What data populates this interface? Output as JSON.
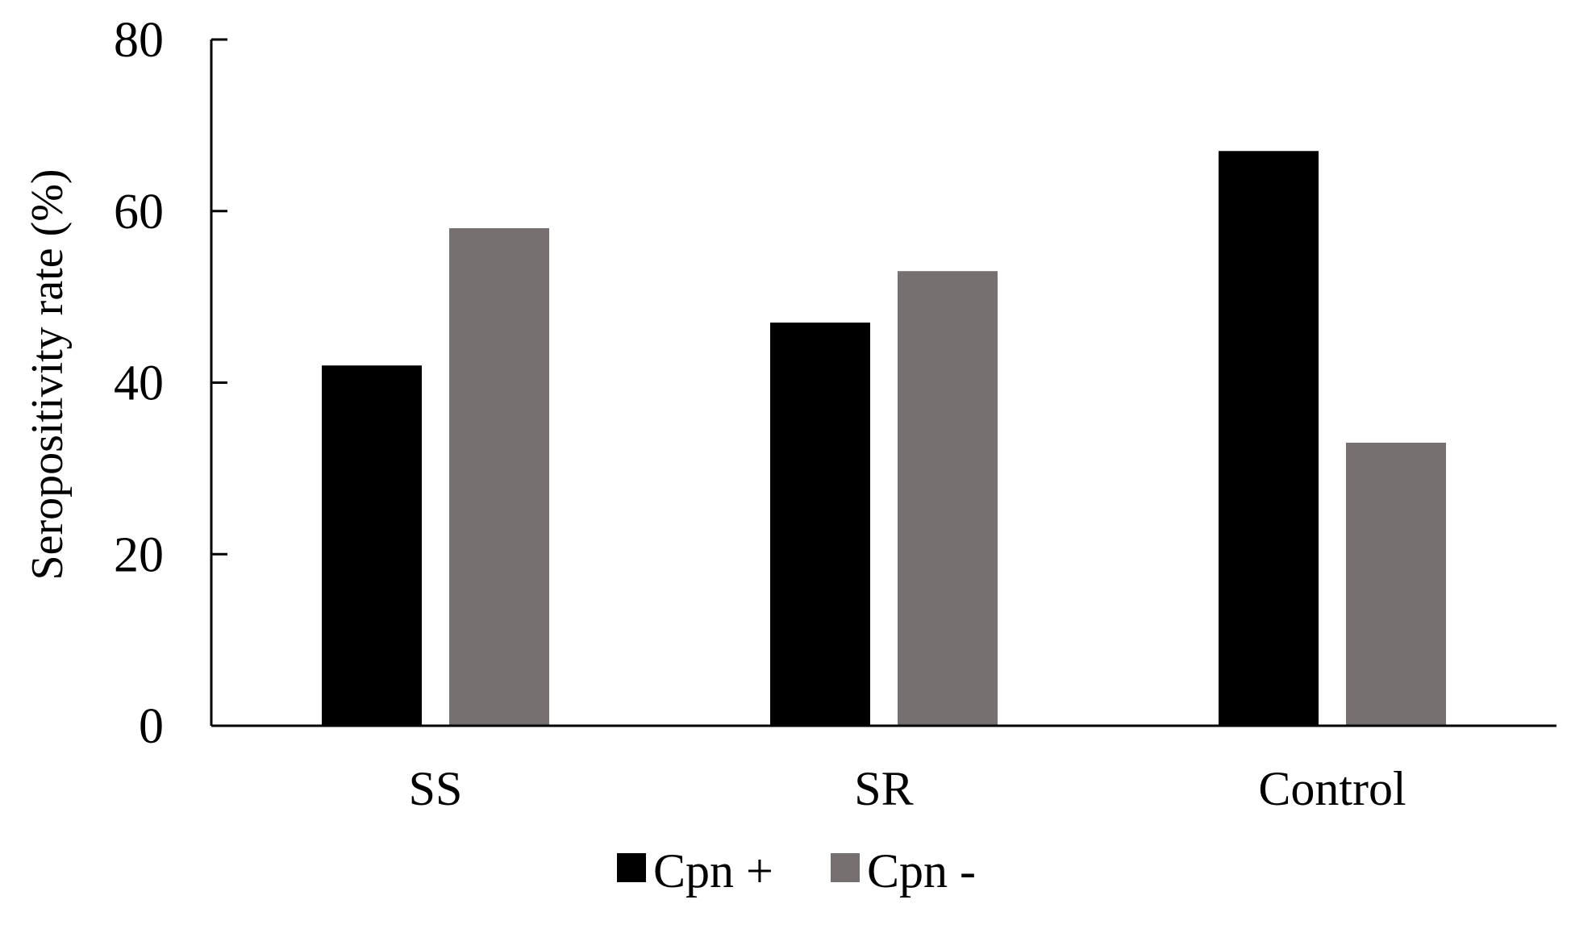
{
  "chart_data": {
    "type": "bar",
    "title": "",
    "xlabel": "",
    "ylabel": "Seropositivity rate (%)",
    "ylim": [
      0,
      80
    ],
    "yticks": [
      0,
      20,
      40,
      60,
      80
    ],
    "grid": false,
    "legend_position": "bottom",
    "categories": [
      "SS",
      "SR",
      "Control"
    ],
    "series": [
      {
        "name": "Cpn +",
        "color": "#000000",
        "values": [
          42,
          47,
          67
        ]
      },
      {
        "name": "Cpn -",
        "color": "#767170",
        "values": [
          58,
          53,
          33
        ]
      }
    ]
  }
}
